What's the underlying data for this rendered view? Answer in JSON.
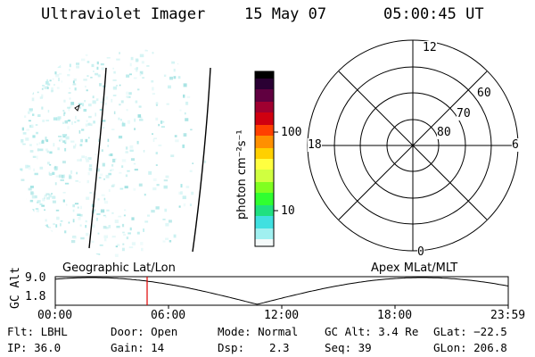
{
  "header": {
    "instrument": "Ultraviolet Imager",
    "date": "15 May 07",
    "time": "05:00:45 UT"
  },
  "colorbar": {
    "unit_label": "photon cm⁻²s⁻¹",
    "tick_labels": [
      "100",
      "10"
    ]
  },
  "polar_plot": {
    "mlt_labels": {
      "top": "12",
      "bottom": "0",
      "left": "18",
      "right": "6"
    },
    "lat_labels": [
      "60",
      "70",
      "80"
    ]
  },
  "orbit_panel": {
    "left_label": "Geographic Lat/Lon",
    "right_label": "Apex MLat/MLT",
    "axis_title": "GC Alt",
    "y_ticks": [
      "9.0",
      "1.8"
    ],
    "x_ticks": [
      "00:00",
      "06:00",
      "12:00",
      "18:00",
      "23:59"
    ],
    "marker_color": "#e00000"
  },
  "info": {
    "row1": {
      "filter": "Flt: LBHL",
      "door": "Door: Open",
      "mode": "Mode: Normal",
      "gc_alt": "GC Alt: 3.4 Re",
      "glat": "GLat: −22.5"
    },
    "row2": {
      "ip": "IP: 36.0",
      "gain": "Gain: 14",
      "dsp_label": "Dsp:",
      "dsp_value": "2.3",
      "seq": "Seq: 39",
      "glon": "GLon: 206.8"
    }
  }
}
